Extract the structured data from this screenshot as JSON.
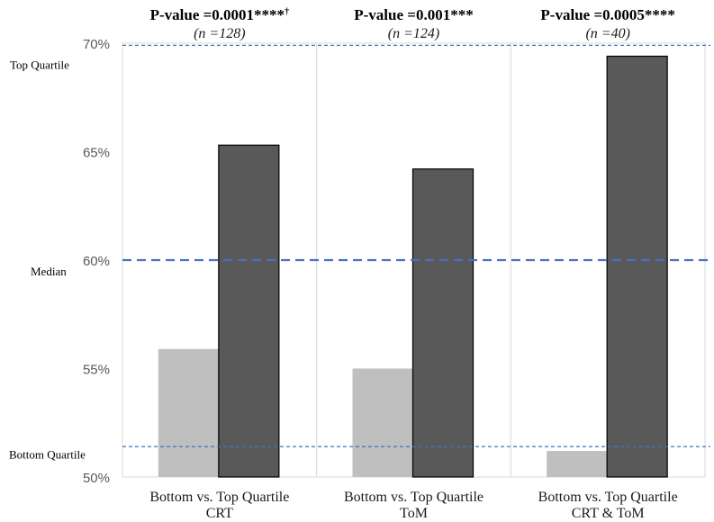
{
  "chart_data": {
    "type": "bar",
    "groups": [
      {
        "label_line1": "Bottom vs. Top Quartile",
        "label_line2": "CRT",
        "pvalue": "P-value =0.0001****",
        "pvalue_suffix": "†",
        "n_label": "(n =128)",
        "values": [
          55.9,
          65.3
        ]
      },
      {
        "label_line1": "Bottom vs. Top Quartile",
        "label_line2": "ToM",
        "pvalue": "P-value =0.001***",
        "pvalue_suffix": "",
        "n_label": "(n =124)",
        "values": [
          55.0,
          64.2
        ]
      },
      {
        "label_line1": "Bottom vs. Top Quartile",
        "label_line2": "CRT & ToM",
        "pvalue": "P-value =0.0005****",
        "pvalue_suffix": "",
        "n_label": "(n =40)",
        "values": [
          51.2,
          69.4
        ]
      }
    ],
    "bar_colors": [
      "#bfbfbf",
      "#595959"
    ],
    "ylim": [
      50,
      70
    ],
    "yticks": [
      {
        "value": 50,
        "label": "50%"
      },
      {
        "value": 55,
        "label": "55%"
      },
      {
        "value": 60,
        "label": "60%"
      },
      {
        "value": 65,
        "label": "65%"
      },
      {
        "value": 70,
        "label": "70%"
      }
    ],
    "reference_lines": [
      {
        "label": "Top Quartile",
        "value": 69.9,
        "style": "thin-dashed"
      },
      {
        "label": "Median",
        "value": 60.0,
        "style": "thick-dashed"
      },
      {
        "label": "Bottom Quartile",
        "value": 51.4,
        "style": "thin-dashed"
      }
    ],
    "reference_color": "#4472c4",
    "grid": true
  }
}
